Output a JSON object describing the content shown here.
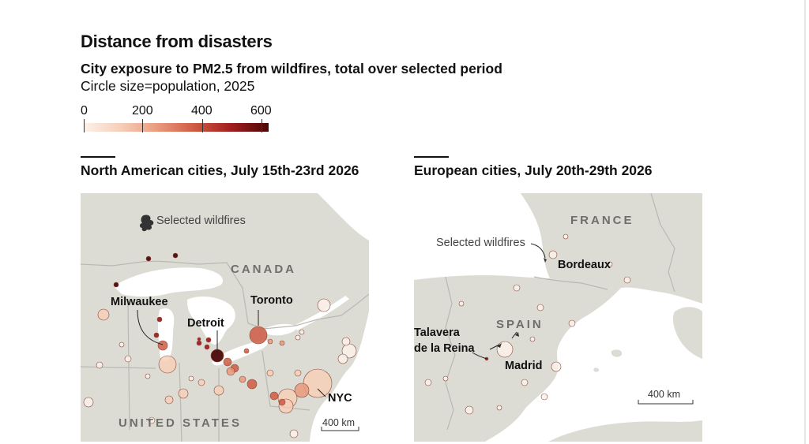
{
  "title": "Distance from disasters",
  "subtitle": "City exposure to PM2.5 from wildfires, total over selected period",
  "note": "Circle size=population, 2025",
  "legend": {
    "ticks": [
      "0",
      "200",
      "400",
      "600"
    ],
    "colors": [
      "#fbf1ea",
      "#f6cfb9",
      "#e99a7c",
      "#cf5a43",
      "#a11d1d",
      "#4d0707"
    ]
  },
  "colors": {
    "land": "#dcdcd5",
    "water": "#ffffff",
    "border": "#b9b9b3",
    "country_label": "#6f6f6a"
  },
  "north_america": {
    "title": "North American cities, July 15th-23rd 2026",
    "country_labels": {
      "canada": "CANADA",
      "usa": "UNITED STATES"
    },
    "wildfire_label": "Selected wildfires",
    "wildfire_icon": "wildfire-smoke-icon",
    "city_labels": {
      "milwaukee": "Milwaukee",
      "detroit": "Detroit",
      "toronto": "Toronto",
      "nyc": "NYC"
    },
    "scale": "400 km"
  },
  "europe": {
    "title": "European cities, July 20th-29th 2026",
    "country_labels": {
      "france": "FRANCE",
      "spain": "SPAIN"
    },
    "wildfire_label": "Selected wildfires",
    "wildfire_icon": "wildfire-smoke-icon",
    "city_labels": {
      "bordeaux": "Bordeaux",
      "talavera_line1": "Talavera",
      "talavera_line2": "de la Reina",
      "madrid": "Madrid"
    },
    "scale": "400 km"
  }
}
